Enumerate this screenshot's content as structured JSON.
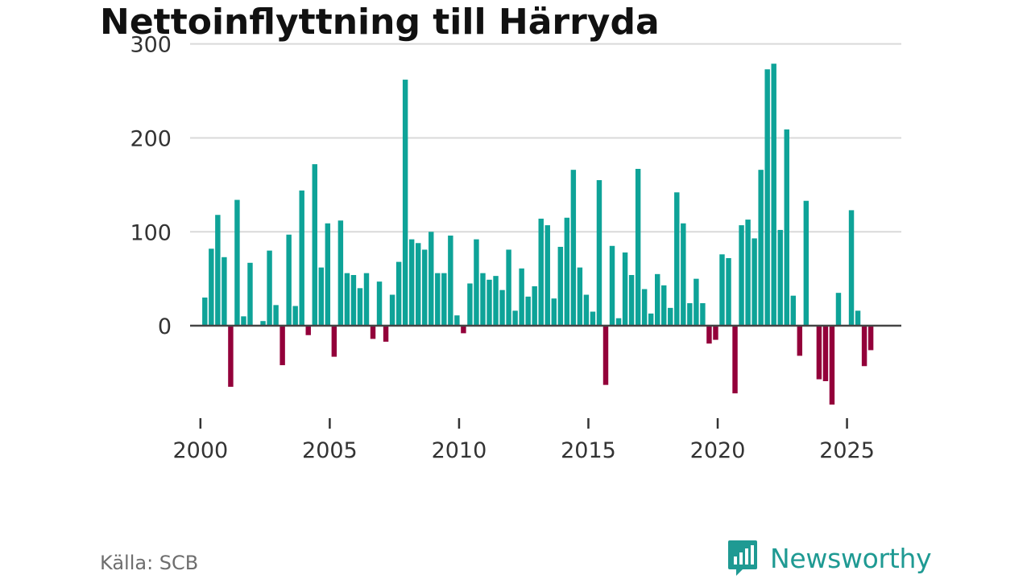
{
  "colors": {
    "positive": "#0ea398",
    "negative": "#93003a",
    "grid": "#d9d9d9",
    "zero_line": "#444444",
    "axis_text": "#333333",
    "brand": "#1f9a93"
  },
  "source": "Källa: SCB",
  "brand": {
    "name": "Newsworthy",
    "icon": "newsworthy-chart-icon"
  },
  "chart_data": {
    "type": "bar",
    "title": "Nettoinflyttning till Härryda",
    "xlabel": "",
    "ylabel": "",
    "ylim": [
      -95,
      310
    ],
    "yticks": [
      0,
      100,
      200,
      300
    ],
    "xlim": [
      1999.6,
      2027.1
    ],
    "xticks": [
      2000,
      2005,
      2010,
      2015,
      2020,
      2025
    ],
    "grid": true,
    "legend": "none",
    "x_start": 2000.17,
    "x_step": 0.25,
    "values": [
      30,
      82,
      118,
      73,
      -65,
      134,
      10,
      67,
      0,
      5,
      80,
      22,
      -42,
      97,
      21,
      144,
      -10,
      172,
      62,
      109,
      -33,
      112,
      56,
      54,
      40,
      56,
      -14,
      47,
      -17,
      33,
      68,
      262,
      92,
      88,
      81,
      100,
      56,
      56,
      96,
      11,
      -8,
      45,
      92,
      56,
      49,
      53,
      38,
      81,
      16,
      61,
      31,
      42,
      114,
      107,
      29,
      84,
      115,
      166,
      62,
      33,
      15,
      155,
      -63,
      85,
      8,
      78,
      54,
      167,
      39,
      13,
      55,
      43,
      19,
      142,
      109,
      24,
      50,
      24,
      -19,
      -15,
      76,
      72,
      -72,
      107,
      113,
      93,
      166,
      273,
      279,
      102,
      209,
      32,
      -32,
      133,
      0,
      -57,
      -59,
      -84,
      35,
      0,
      123,
      16,
      -43,
      -26
    ]
  }
}
